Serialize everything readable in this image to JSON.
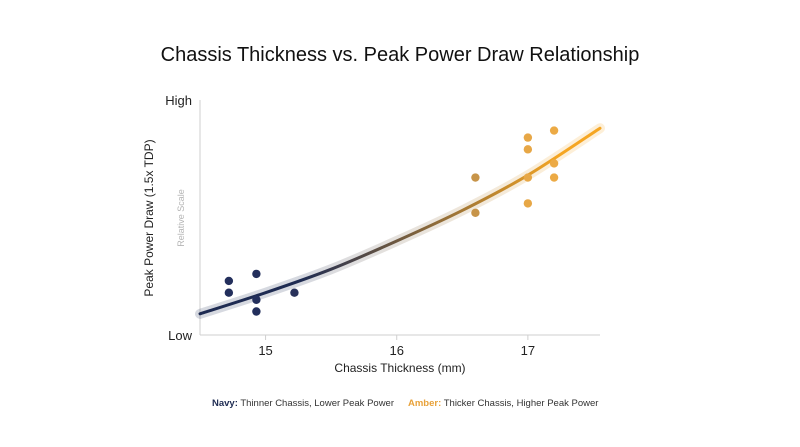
{
  "chart_data": {
    "type": "scatter",
    "title": "Chassis Thickness vs. Peak Power Draw Relationship",
    "xlabel": "Chassis Thickness (mm)",
    "ylabel": "Peak Power Draw (1.5x TDP)",
    "y_scale_note": "Relative Scale",
    "xlim": [
      14.5,
      17.55
    ],
    "ylim": [
      0,
      1
    ],
    "x_ticks": [
      15,
      16,
      17
    ],
    "y_tick_labels": [
      {
        "value": 1,
        "label": "High"
      },
      {
        "value": 0,
        "label": "Low"
      }
    ],
    "grid": false,
    "series": [
      {
        "color": "#1e2b52",
        "points": [
          {
            "x": 14.72,
            "y": 0.23
          },
          {
            "x": 14.72,
            "y": 0.18
          },
          {
            "x": 14.93,
            "y": 0.26
          },
          {
            "x": 14.93,
            "y": 0.15
          },
          {
            "x": 14.93,
            "y": 0.1
          },
          {
            "x": 15.22,
            "y": 0.18
          }
        ]
      },
      {
        "color": "#e8a23a",
        "points": [
          {
            "x": 16.6,
            "y": 0.67
          },
          {
            "x": 16.6,
            "y": 0.52
          },
          {
            "x": 17.0,
            "y": 0.84
          },
          {
            "x": 17.0,
            "y": 0.79
          },
          {
            "x": 17.0,
            "y": 0.67
          },
          {
            "x": 17.0,
            "y": 0.56
          },
          {
            "x": 17.2,
            "y": 0.87
          },
          {
            "x": 17.2,
            "y": 0.73
          },
          {
            "x": 17.2,
            "y": 0.67
          }
        ]
      }
    ],
    "trend_line": {
      "points": [
        {
          "x": 14.5,
          "y": 0.09
        },
        {
          "x": 15.0,
          "y": 0.18
        },
        {
          "x": 15.5,
          "y": 0.28
        },
        {
          "x": 16.0,
          "y": 0.4
        },
        {
          "x": 16.5,
          "y": 0.53
        },
        {
          "x": 17.0,
          "y": 0.68
        },
        {
          "x": 17.55,
          "y": 0.88
        }
      ],
      "color_start": "#1e2b52",
      "color_end": "#f5a623"
    },
    "legend": [
      {
        "key": "Navy:",
        "text": "Thinner Chassis, Lower Peak Power",
        "color": "#1e2b52"
      },
      {
        "key": "Amber:",
        "text": "Thicker Chassis, Higher Peak Power",
        "color": "#e8a23a"
      }
    ],
    "legend_placement": "bottom"
  }
}
